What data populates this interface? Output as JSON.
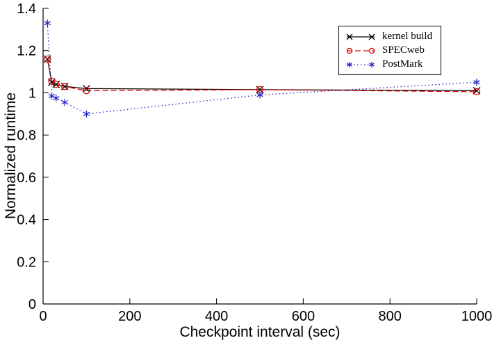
{
  "chart_data": {
    "type": "line",
    "title": "",
    "xlabel": "Checkpoint interval (sec)",
    "ylabel": "Normalized runtime",
    "xlim": [
      0,
      1000
    ],
    "ylim": [
      0,
      1.4
    ],
    "xticks": [
      0,
      200,
      400,
      600,
      800,
      1000
    ],
    "xtick_labels": [
      "0",
      "200",
      "400",
      "600",
      "800",
      "1000"
    ],
    "yticks": [
      0,
      0.2,
      0.4,
      0.6,
      0.8,
      1,
      1.2,
      1.4
    ],
    "ytick_labels": [
      "0",
      "0.2",
      "0.4",
      "0.6",
      "0.8",
      "1",
      "1.2",
      "1.4"
    ],
    "grid": false,
    "legend_position": "top-right",
    "axis_color": "#000000",
    "background": "#ffffff",
    "x": [
      10,
      20,
      30,
      50,
      100,
      500,
      1000
    ],
    "series": [
      {
        "name": "kernel build",
        "color": "#000000",
        "line": "solid",
        "marker": "x",
        "values": [
          1.16,
          1.05,
          1.04,
          1.03,
          1.02,
          1.015,
          1.01
        ]
      },
      {
        "name": "SPECweb",
        "color": "#e00000",
        "line": "dashed",
        "marker": "circle",
        "values": [
          1.16,
          1.055,
          1.04,
          1.03,
          1.01,
          1.015,
          1.005
        ]
      },
      {
        "name": "PostMark",
        "color": "#2222cc",
        "line": "dotted",
        "marker": "asterisk",
        "values": [
          1.33,
          0.985,
          0.975,
          0.955,
          0.9,
          0.99,
          1.05
        ]
      }
    ]
  }
}
